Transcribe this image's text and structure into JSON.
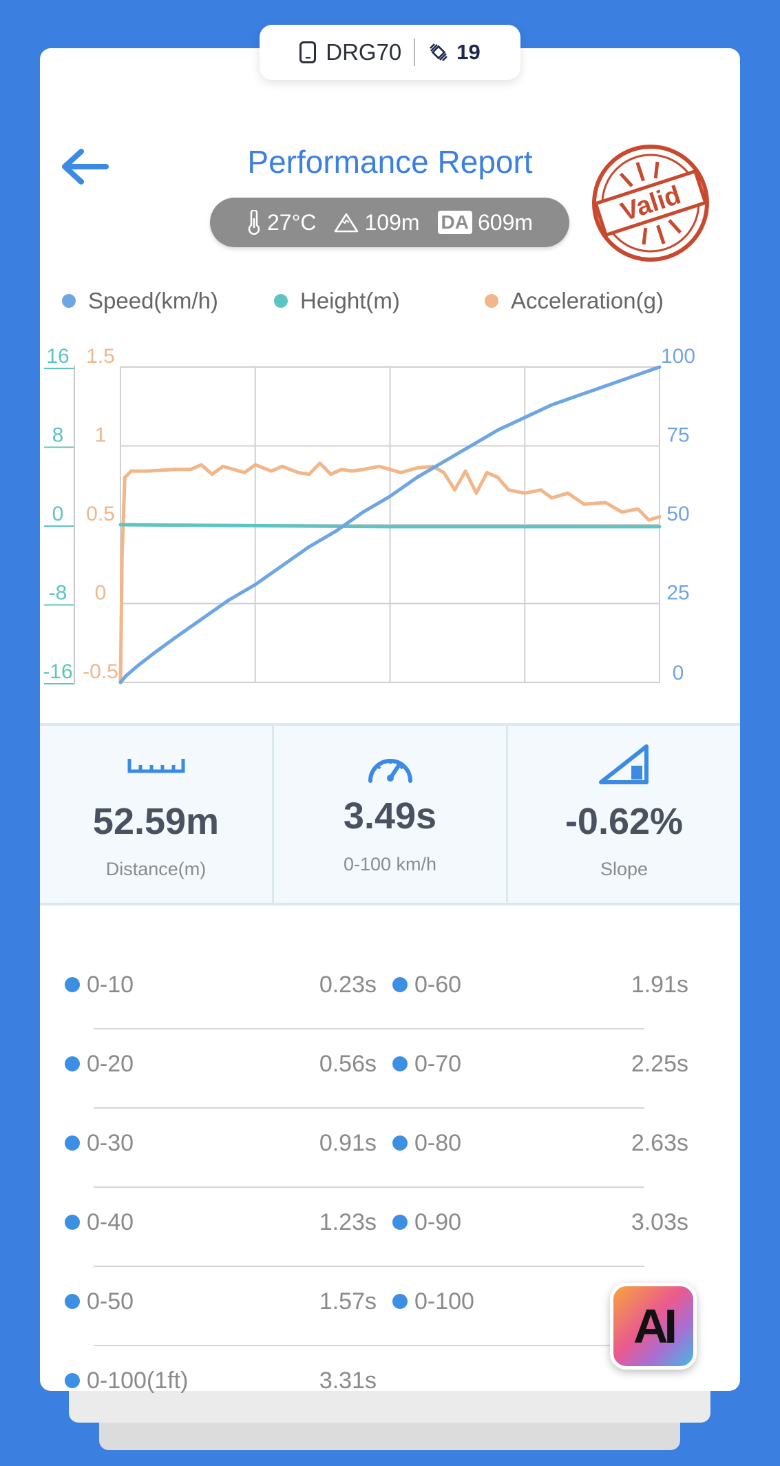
{
  "device": {
    "name": "DRG70",
    "satellites": "19"
  },
  "header": {
    "title": "Performance Report",
    "stamp_text": "Valid"
  },
  "conditions": {
    "temperature": "27°C",
    "altitude": "109m",
    "da_label": "DA",
    "density_altitude": "609m"
  },
  "legend": [
    {
      "label": "Speed(km/h)",
      "color": "#6ea5e3"
    },
    {
      "label": "Height(m)",
      "color": "#5ec4c2"
    },
    {
      "label": "Acceleration(g)",
      "color": "#f1b68a"
    }
  ],
  "chart_data": {
    "type": "line",
    "x_divisions": 4,
    "grid": true,
    "legend_position": "top",
    "axes": {
      "height_left_outer": {
        "ticks": [
          "16",
          "8",
          "0",
          "-8",
          "-16"
        ],
        "range": [
          -16,
          16
        ],
        "color": "#5ec4c2"
      },
      "accel_left_inner": {
        "ticks": [
          "1.5",
          "1",
          "0.5",
          "0",
          "-0.5"
        ],
        "range": [
          -0.5,
          1.5
        ],
        "color": "#f1b68a"
      },
      "speed_right": {
        "ticks": [
          "100",
          "75",
          "50",
          "25",
          "0"
        ],
        "range": [
          0,
          100
        ],
        "color": "#6ea5e3"
      }
    },
    "series": [
      {
        "name": "Speed(km/h)",
        "axis": "speed_right",
        "color": "#6ea5e3",
        "x": [
          0,
          0.01,
          0.03,
          0.06,
          0.1,
          0.15,
          0.2,
          0.25,
          0.3,
          0.35,
          0.4,
          0.45,
          0.5,
          0.55,
          0.6,
          0.65,
          0.7,
          0.75,
          0.8,
          0.85,
          0.9,
          0.95,
          1.0
        ],
        "values": [
          0,
          2,
          5,
          9,
          14,
          20,
          26,
          31,
          37,
          43,
          48,
          54,
          59,
          65,
          70,
          75,
          80,
          84,
          88,
          91,
          94,
          97,
          100
        ]
      },
      {
        "name": "Height(m)",
        "axis": "height_left_outer",
        "color": "#5ec4c2",
        "x": [
          0,
          0.25,
          0.5,
          0.75,
          1.0
        ],
        "values": [
          0,
          -0.1,
          -0.2,
          -0.2,
          -0.2
        ]
      },
      {
        "name": "Acceleration(g)",
        "axis": "accel_left_inner",
        "color": "#f1b68a",
        "x": [
          0,
          0.003,
          0.008,
          0.02,
          0.05,
          0.1,
          0.13,
          0.15,
          0.17,
          0.19,
          0.21,
          0.23,
          0.25,
          0.28,
          0.3,
          0.33,
          0.35,
          0.37,
          0.39,
          0.41,
          0.43,
          0.45,
          0.48,
          0.5,
          0.52,
          0.55,
          0.58,
          0.6,
          0.62,
          0.64,
          0.66,
          0.68,
          0.7,
          0.72,
          0.75,
          0.78,
          0.8,
          0.83,
          0.86,
          0.9,
          0.93,
          0.96,
          0.98,
          1.0
        ],
        "values": [
          -0.5,
          0.3,
          0.8,
          0.84,
          0.84,
          0.85,
          0.85,
          0.88,
          0.82,
          0.87,
          0.85,
          0.83,
          0.88,
          0.84,
          0.87,
          0.83,
          0.82,
          0.89,
          0.82,
          0.85,
          0.84,
          0.85,
          0.87,
          0.85,
          0.83,
          0.86,
          0.87,
          0.83,
          0.72,
          0.84,
          0.7,
          0.83,
          0.8,
          0.72,
          0.7,
          0.72,
          0.67,
          0.7,
          0.63,
          0.64,
          0.58,
          0.6,
          0.53,
          0.55
        ]
      }
    ]
  },
  "stats": [
    {
      "value": "52.59m",
      "label": "Distance(m)",
      "icon": "ruler-icon"
    },
    {
      "value": "3.49s",
      "label": "0-100 km/h",
      "icon": "speedometer-icon"
    },
    {
      "value": "-0.62%",
      "label": "Slope",
      "icon": "slope-icon"
    }
  ],
  "splits": [
    {
      "left_label": "0-10",
      "left_time": "0.23s",
      "right_label": "0-60",
      "right_time": "1.91s"
    },
    {
      "left_label": "0-20",
      "left_time": "0.56s",
      "right_label": "0-70",
      "right_time": "2.25s"
    },
    {
      "left_label": "0-30",
      "left_time": "0.91s",
      "right_label": "0-80",
      "right_time": "2.63s"
    },
    {
      "left_label": "0-40",
      "left_time": "1.23s",
      "right_label": "0-90",
      "right_time": "3.03s"
    },
    {
      "left_label": "0-50",
      "left_time": "1.57s",
      "right_label": "0-100",
      "right_time": ""
    },
    {
      "left_label": "0-100(1ft)",
      "left_time": "3.31s",
      "right_label": "",
      "right_time": ""
    }
  ],
  "ai_button": {
    "label": "AI"
  }
}
